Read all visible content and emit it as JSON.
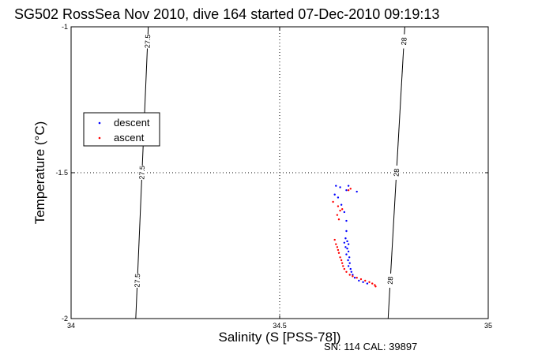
{
  "chart_data": {
    "type": "scatter",
    "title": "SG502 RossSea Nov 2010, dive 164 started 07-Dec-2010 09:19:13",
    "xlabel": "Salinity (S [PSS-78])",
    "ylabel": "Temperature (°C)",
    "footer": "SN: 114  CAL: 39897",
    "xlim": [
      34,
      35
    ],
    "ylim": [
      -2,
      -1
    ],
    "xticks": [
      "34",
      "34.5",
      "35"
    ],
    "yticks": [
      "-1",
      "-1.5",
      "-2"
    ],
    "grid": "dotted at 34.5 and -1.5",
    "legend_position": "left",
    "density_contours": [
      {
        "label": "27.5",
        "points": [
          [
            34.155,
            -2.0
          ],
          [
            34.185,
            -1.0
          ]
        ]
      },
      {
        "label": "28",
        "points": [
          [
            34.76,
            -2.0
          ],
          [
            34.8,
            -1.0
          ]
        ]
      }
    ],
    "series": [
      {
        "name": "descent",
        "color": "#0000ff",
        "points": [
          [
            34.635,
            -1.545
          ],
          [
            34.645,
            -1.55
          ],
          [
            34.66,
            -1.56
          ],
          [
            34.665,
            -1.545
          ],
          [
            34.685,
            -1.565
          ],
          [
            34.632,
            -1.575
          ],
          [
            34.64,
            -1.585
          ],
          [
            34.648,
            -1.61
          ],
          [
            34.655,
            -1.635
          ],
          [
            34.66,
            -1.665
          ],
          [
            34.66,
            -1.7
          ],
          [
            34.658,
            -1.725
          ],
          [
            34.662,
            -1.735
          ],
          [
            34.655,
            -1.74
          ],
          [
            34.665,
            -1.745
          ],
          [
            34.658,
            -1.755
          ],
          [
            34.662,
            -1.76
          ],
          [
            34.665,
            -1.77
          ],
          [
            34.66,
            -1.78
          ],
          [
            34.667,
            -1.79
          ],
          [
            34.664,
            -1.8
          ],
          [
            34.668,
            -1.81
          ],
          [
            34.665,
            -1.82
          ],
          [
            34.67,
            -1.83
          ],
          [
            34.672,
            -1.84
          ],
          [
            34.675,
            -1.85
          ],
          [
            34.68,
            -1.86
          ],
          [
            34.69,
            -1.87
          ],
          [
            34.7,
            -1.875
          ],
          [
            34.71,
            -1.88
          ]
        ]
      },
      {
        "name": "ascent",
        "color": "#ff0000",
        "points": [
          [
            34.665,
            -1.56
          ],
          [
            34.67,
            -1.555
          ],
          [
            34.628,
            -1.6
          ],
          [
            34.64,
            -1.615
          ],
          [
            34.65,
            -1.625
          ],
          [
            34.645,
            -1.63
          ],
          [
            34.638,
            -1.645
          ],
          [
            34.642,
            -1.66
          ],
          [
            34.632,
            -1.73
          ],
          [
            34.635,
            -1.745
          ],
          [
            34.638,
            -1.755
          ],
          [
            34.64,
            -1.765
          ],
          [
            34.642,
            -1.775
          ],
          [
            34.645,
            -1.79
          ],
          [
            34.648,
            -1.8
          ],
          [
            34.65,
            -1.81
          ],
          [
            34.652,
            -1.82
          ],
          [
            34.655,
            -1.83
          ],
          [
            34.66,
            -1.84
          ],
          [
            34.668,
            -1.85
          ],
          [
            34.675,
            -1.855
          ],
          [
            34.685,
            -1.86
          ],
          [
            34.695,
            -1.865
          ],
          [
            34.705,
            -1.87
          ],
          [
            34.715,
            -1.875
          ],
          [
            34.722,
            -1.88
          ],
          [
            34.728,
            -1.885
          ],
          [
            34.73,
            -1.89
          ]
        ]
      }
    ]
  }
}
